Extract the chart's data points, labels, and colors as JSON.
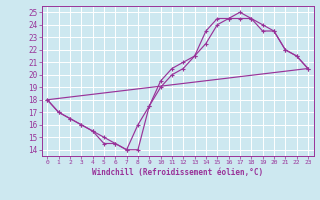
{
  "xlabel": "Windchill (Refroidissement éolien,°C)",
  "bg_color": "#cde8f0",
  "line_color": "#993399",
  "grid_color": "#ffffff",
  "xlim": [
    -0.5,
    23.5
  ],
  "ylim": [
    13.5,
    25.5
  ],
  "xticks": [
    0,
    1,
    2,
    3,
    4,
    5,
    6,
    7,
    8,
    9,
    10,
    11,
    12,
    13,
    14,
    15,
    16,
    17,
    18,
    19,
    20,
    21,
    22,
    23
  ],
  "yticks": [
    14,
    15,
    16,
    17,
    18,
    19,
    20,
    21,
    22,
    23,
    24,
    25
  ],
  "line1_x": [
    0,
    1,
    2,
    3,
    4,
    5,
    6,
    7,
    8,
    9,
    10,
    11,
    12,
    13,
    14,
    15,
    16,
    17,
    18,
    19,
    20,
    21,
    22,
    23
  ],
  "line1_y": [
    18,
    17,
    16.5,
    16,
    15.5,
    14.5,
    14.5,
    14,
    14,
    17.5,
    19.5,
    20.5,
    21,
    21.5,
    23.5,
    24.5,
    24.5,
    25,
    24.5,
    24,
    23.5,
    22,
    21.5,
    20.5
  ],
  "line2_x": [
    0,
    1,
    2,
    3,
    4,
    5,
    6,
    7,
    8,
    9,
    10,
    11,
    12,
    13,
    14,
    15,
    16,
    17,
    18,
    19,
    20,
    21,
    22,
    23
  ],
  "line2_y": [
    18,
    17,
    16.5,
    16,
    15.5,
    15,
    14.5,
    14,
    16,
    17.5,
    19.0,
    20.0,
    20.5,
    21.5,
    22.5,
    24.0,
    24.5,
    24.5,
    24.5,
    23.5,
    23.5,
    22,
    21.5,
    20.5
  ],
  "line3_x": [
    0,
    23
  ],
  "line3_y": [
    18,
    20.5
  ],
  "xlabel_color": "#993399",
  "tick_color": "#993399"
}
